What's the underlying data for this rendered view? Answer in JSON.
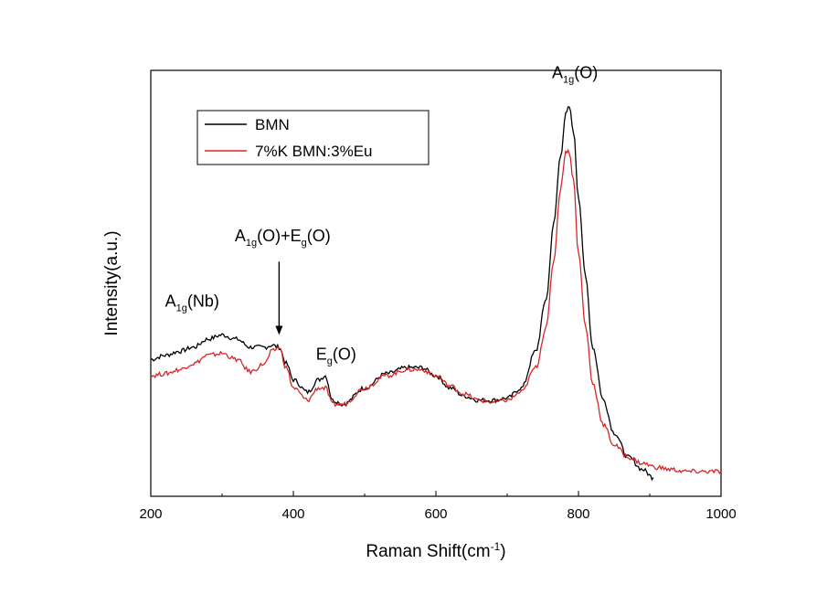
{
  "chart_data": {
    "type": "line",
    "title": "",
    "xlabel": "Raman Shift(cm",
    "xlabel_sup": "-1",
    "xlabel_close": ")",
    "ylabel": "Intensity(a.u.)",
    "xlim": [
      200,
      1000
    ],
    "ylim": [
      0,
      100
    ],
    "x_ticks": [
      200,
      400,
      600,
      800,
      1000
    ],
    "x_tick_labels": [
      "200",
      "400",
      "600",
      "800",
      "1000"
    ],
    "grid": false,
    "legend_position": "top-left",
    "series": [
      {
        "name": "BMN",
        "color": "#000000",
        "x": [
          200,
          220,
          240,
          260,
          280,
          300,
          320,
          340,
          360,
          370,
          380,
          390,
          400,
          420,
          435,
          445,
          455,
          470,
          500,
          530,
          560,
          580,
          600,
          620,
          640,
          660,
          680,
          700,
          720,
          740,
          755,
          765,
          775,
          782,
          787,
          793,
          800,
          810,
          820,
          835,
          850,
          870,
          890,
          905
        ],
        "y": [
          32,
          33,
          34,
          35,
          37,
          38,
          37,
          35,
          35,
          35.5,
          35,
          31,
          27,
          24,
          27,
          28,
          22,
          21,
          25,
          28.5,
          30,
          30,
          28,
          25,
          23,
          22,
          22,
          22.5,
          25,
          34,
          47,
          65,
          82,
          92,
          94,
          88,
          72,
          52,
          35,
          22,
          14,
          8,
          5,
          3
        ]
      },
      {
        "name": "7%K BMN:3%Eu",
        "color": "#d62728",
        "x": [
          200,
          220,
          240,
          260,
          280,
          300,
          320,
          340,
          360,
          370,
          380,
          390,
          400,
          420,
          435,
          445,
          455,
          470,
          500,
          530,
          560,
          580,
          600,
          620,
          640,
          660,
          680,
          700,
          720,
          740,
          755,
          765,
          775,
          782,
          787,
          793,
          800,
          810,
          820,
          835,
          850,
          870,
          890,
          910,
          930,
          950,
          970,
          1000
        ],
        "y": [
          28,
          28.5,
          29.5,
          31,
          33,
          33.5,
          32,
          29,
          31,
          34,
          35,
          30,
          25,
          22,
          25,
          25,
          21,
          21,
          25,
          28,
          29.5,
          29.5,
          28,
          25.5,
          23.5,
          22,
          21.5,
          22,
          24,
          30,
          40,
          56,
          74,
          83,
          83,
          76,
          58,
          40,
          26,
          16,
          11,
          8,
          6.5,
          5.5,
          5,
          4.5,
          4.5,
          4.5
        ]
      }
    ],
    "annotations": [
      {
        "id": "a1g-nb",
        "main": "A",
        "sub": "1g",
        "rest": "(Nb)",
        "x": 258,
        "y": 45
      },
      {
        "id": "a1g-eg",
        "main": "A",
        "sub": "1g",
        "rest": "(O)+E",
        "sub2": "g",
        "rest2": "(O)",
        "x": 385,
        "y": 61
      },
      {
        "id": "eg",
        "main": "E",
        "sub": "g",
        "rest": "(O)",
        "x": 460,
        "y": 32
      },
      {
        "id": "a1g-o",
        "main": "A",
        "sub": "1g",
        "rest": "(O)",
        "x": 795,
        "y": 101
      }
    ],
    "arrow": {
      "x": 380,
      "y_from": 56,
      "y_to": 38
    }
  }
}
